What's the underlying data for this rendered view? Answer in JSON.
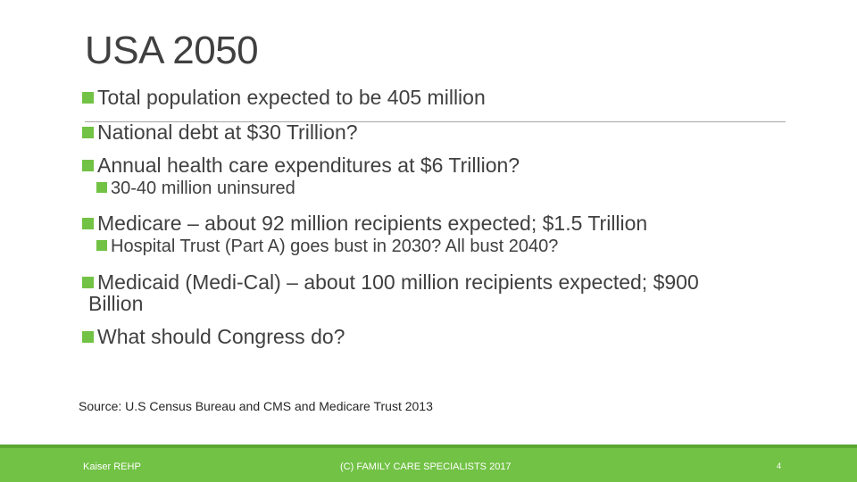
{
  "slide": {
    "title": "USA 2050",
    "bullets": [
      "Total population expected to be 405 million",
      "National debt at $30 Trillion?",
      "Annual health care expenditures at $6 Trillion?",
      "30-40 million uninsured",
      "Medicare – about 92 million recipients expected; $1.5 Trillion",
      "Hospital Trust (Part A) goes bust in 2030? All bust 2040?",
      "Medicaid (Medi-Cal) – about 100 million recipients expected; $900",
      "What should Congress do?"
    ],
    "medicaid_wrap": "Billion",
    "source": "Source: U.S Census Bureau and CMS and Medicare Trust 2013"
  },
  "footer": {
    "left": "Kaiser REHP",
    "center": "(C) FAMILY CARE SPECIALISTS 2017",
    "page_number": "4"
  },
  "colors": {
    "accent": "#72c245",
    "text": "#404040"
  }
}
